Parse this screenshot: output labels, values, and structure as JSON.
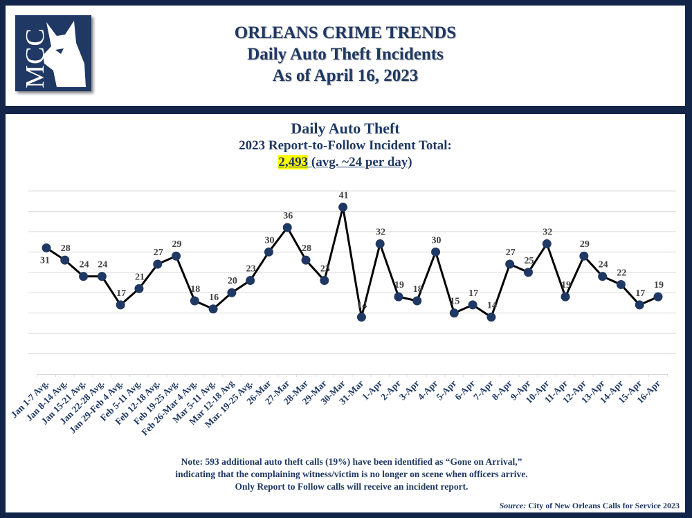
{
  "header": {
    "logo_text": "MCC",
    "title_line1": "ORLEANS CRIME TRENDS",
    "title_line2": "Daily Auto Theft Incidents",
    "title_line3": "As of April 16, 2023"
  },
  "chart_titles": {
    "title": "Daily Auto Theft",
    "subtitle": "2023 Report-to-Follow Incident Total:",
    "total": "2,493",
    "avg": " (avg. ~24 per day)"
  },
  "chart_data": {
    "type": "line",
    "title": "Daily Auto Theft",
    "xlabel": "",
    "ylabel": "",
    "ylim": [
      0,
      45
    ],
    "grid": true,
    "categories": [
      "Jan 1-7 Avg.",
      "Jan 8-14 Avg.",
      "Jan 15-21 Avg.",
      "Jan 22-28 Avg.",
      "Jan 29-Feb 4 Avg.",
      "Feb 5-11 Avg.",
      "Feb 12-18 Avg.",
      "Feb 19-25 Avg.",
      "Feb 26-Mar 4 Avg.",
      "Mar 5-11 Avg.",
      "Mar 12-18 Avg",
      "Mar. 19-25 Avg.",
      "26-Mar",
      "27-Mar",
      "28-Mar",
      "29-Mar",
      "30-Mar",
      "31-Mar",
      "1-Apr",
      "2-Apr",
      "3-Apr",
      "4-Apr",
      "5-Apr",
      "6-Apr",
      "7-Apr",
      "8-Apr",
      "9-Apr",
      "10-Apr",
      "11-Apr",
      "12-Apr",
      "13-Apr",
      "14-Apr",
      "15-Apr",
      "16-Apr"
    ],
    "values": [
      31,
      28,
      24,
      24,
      17,
      21,
      27,
      29,
      18,
      16,
      20,
      23,
      30,
      36,
      28,
      23,
      41,
      14,
      32,
      19,
      18,
      30,
      15,
      17,
      14,
      27,
      25,
      32,
      19,
      29,
      24,
      22,
      17,
      19
    ],
    "line_color": "#000000",
    "marker_color": "#1f3864"
  },
  "note": "Note: 593 additional auto theft calls (19%) have been identified as “Gone on Arrival,” indicating that the complaining witness/victim is no longer on scene when officers arrive.  Only Report to Follow calls will receive an incident report.",
  "source": {
    "label": "Source:",
    "text": " City of New Orleans Calls for Service 2023"
  }
}
